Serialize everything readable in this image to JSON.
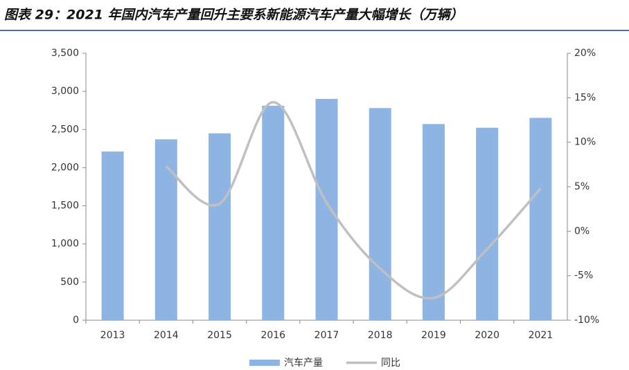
{
  "chart_data": {
    "type": "bar-line",
    "title": "图表 29：2021 年国内汽车产量回升主要系新能源汽车产量大幅增长（万辆）",
    "categories": [
      "2013",
      "2014",
      "2015",
      "2016",
      "2017",
      "2018",
      "2019",
      "2020",
      "2021"
    ],
    "series": [
      {
        "name": "汽车产量",
        "color": "#8eb4e3",
        "type": "bar",
        "values": [
          2212,
          2372,
          2450,
          2812,
          2902,
          2781,
          2572,
          2523,
          2653
        ]
      },
      {
        "name": "同比",
        "color": "#c0c0c0",
        "type": "line",
        "axis": "y2",
        "values": [
          null,
          7.3,
          3.1,
          14.5,
          3.2,
          -4.2,
          -7.5,
          -2.0,
          4.8
        ]
      }
    ],
    "ylim": [
      0,
      3500
    ],
    "yticks": [
      0,
      500,
      {
        "value": 1000,
        "label": "1,000"
      },
      {
        "value": 1500,
        "label": "1,500"
      },
      {
        "value": 2000,
        "label": "2,000"
      },
      {
        "value": 2500,
        "label": "2,500"
      },
      {
        "value": 3000,
        "label": "3,000"
      },
      {
        "value": 3500,
        "label": "3,500"
      }
    ],
    "y2lim": [
      -10,
      20
    ],
    "y2ticks": [
      {
        "value": -10,
        "label": "-10%"
      },
      {
        "value": -5,
        "label": "-5%"
      },
      {
        "value": 0,
        "label": "0%"
      },
      {
        "value": 5,
        "label": "5%"
      },
      {
        "value": 10,
        "label": "10%"
      },
      {
        "value": 15,
        "label": "15%"
      },
      {
        "value": 20,
        "label": "20%"
      }
    ],
    "legend": "bottom"
  }
}
